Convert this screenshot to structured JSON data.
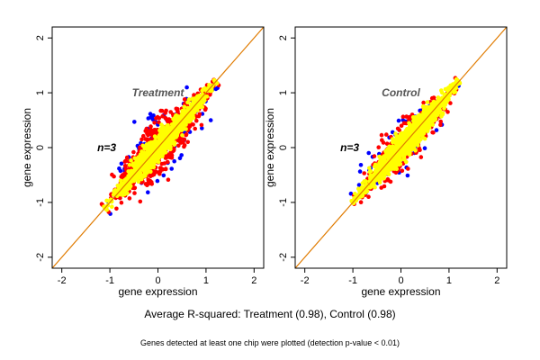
{
  "chart_data": [
    {
      "type": "scatter",
      "panel_label": "Treatment",
      "n_label": "n=3",
      "xlabel": "gene expression",
      "ylabel": "gene expression",
      "xlim": [
        -2.2,
        2.2
      ],
      "ylim": [
        -2.2,
        2.2
      ],
      "xticks": [
        -2,
        -1,
        0,
        1,
        2
      ],
      "yticks": [
        -2,
        -1,
        0,
        1,
        2
      ],
      "reference_line": {
        "slope": 1,
        "intercept": 0,
        "color": "#e07b00"
      },
      "cloud": {
        "x_range": [
          -1.1,
          1.2
        ],
        "spread": 0.12
      },
      "series": [
        {
          "color": "#0000ff",
          "spread_scale": 2.7,
          "count": 130
        },
        {
          "color": "#ff0000",
          "spread_scale": 2.1,
          "count": 700
        },
        {
          "color": "#ffff00",
          "spread_scale": 1.0,
          "count": 1100
        }
      ],
      "grid": false,
      "legend": "none"
    },
    {
      "type": "scatter",
      "panel_label": "Control",
      "n_label": "n=3",
      "xlabel": "gene expression",
      "ylabel": "gene expression",
      "xlim": [
        -2.2,
        2.2
      ],
      "ylim": [
        -2.2,
        2.2
      ],
      "xticks": [
        -2,
        -1,
        0,
        1,
        2
      ],
      "yticks": [
        -2,
        -1,
        0,
        1,
        2
      ],
      "reference_line": {
        "slope": 1,
        "intercept": 0,
        "color": "#e07b00"
      },
      "cloud": {
        "x_range": [
          -1.0,
          1.2
        ],
        "spread": 0.12
      },
      "series": [
        {
          "color": "#0000ff",
          "spread_scale": 2.4,
          "count": 110
        },
        {
          "color": "#ff0000",
          "spread_scale": 1.8,
          "count": 350
        },
        {
          "color": "#ffff00",
          "spread_scale": 1.1,
          "count": 1100
        }
      ],
      "grid": false,
      "legend": "none"
    }
  ],
  "captions": {
    "main": "Average R-squared: Treatment (0.98), Control (0.98)",
    "footnote": "Genes detected at least one chip were plotted (detection p-value < 0.01)"
  }
}
